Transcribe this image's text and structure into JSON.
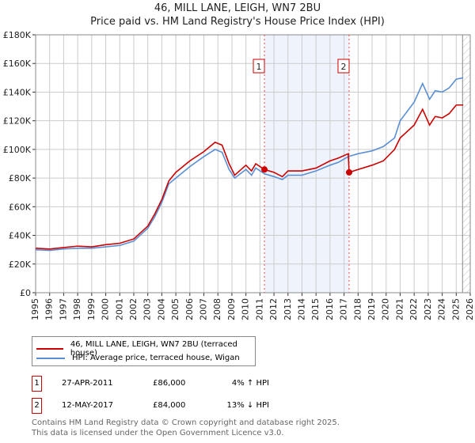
{
  "chart_data": {
    "type": "line",
    "title": "46, MILL LANE, LEIGH, WN7 2BU",
    "subtitle": "Price paid vs. HM Land Registry's House Price Index (HPI)",
    "xlim": [
      1995,
      2026
    ],
    "ylim": [
      0,
      180000
    ],
    "x_ticks": [
      "1995",
      "1996",
      "1997",
      "1998",
      "1999",
      "2000",
      "2001",
      "2002",
      "2003",
      "2004",
      "2005",
      "2006",
      "2007",
      "2008",
      "2009",
      "2010",
      "2011",
      "2012",
      "2013",
      "2014",
      "2015",
      "2016",
      "2017",
      "2018",
      "2019",
      "2020",
      "2021",
      "2022",
      "2023",
      "2024",
      "2025",
      "2026"
    ],
    "y_ticks": [
      {
        "v": 0,
        "label": "£0"
      },
      {
        "v": 20000,
        "label": "£20K"
      },
      {
        "v": 40000,
        "label": "£40K"
      },
      {
        "v": 60000,
        "label": "£60K"
      },
      {
        "v": 80000,
        "label": "£80K"
      },
      {
        "v": 100000,
        "label": "£100K"
      },
      {
        "v": 120000,
        "label": "£120K"
      },
      {
        "v": 140000,
        "label": "£140K"
      },
      {
        "v": 160000,
        "label": "£160K"
      },
      {
        "v": 180000,
        "label": "£180K"
      }
    ],
    "grid": true,
    "series": [
      {
        "name": "46, MILL LANE, LEIGH, WN7 2BU (terraced house)",
        "color": "#cc0000",
        "x": [
          1995,
          1996,
          1997,
          1998,
          1999,
          2000,
          2001,
          2002,
          2003,
          2003.5,
          2004,
          2004.5,
          2005,
          2006,
          2007,
          2007.8,
          2008.3,
          2008.8,
          2009.2,
          2010,
          2010.4,
          2010.7,
          2011.32,
          2012,
          2012.6,
          2013,
          2014,
          2015,
          2016,
          2016.6,
          2017.3,
          2017.36,
          2018,
          2019,
          2019.8,
          2020.6,
          2021,
          2022,
          2022.6,
          2023.1,
          2023.5,
          2024,
          2024.5,
          2025,
          2025.5
        ],
        "y": [
          31000,
          30500,
          31500,
          32500,
          32000,
          33500,
          34500,
          37500,
          46500,
          55000,
          65000,
          78000,
          84000,
          92000,
          98500,
          105000,
          103000,
          90000,
          82000,
          89000,
          85000,
          90000,
          86000,
          84000,
          81000,
          85000,
          85000,
          87000,
          92000,
          94000,
          97000,
          84000,
          86000,
          89000,
          92000,
          100000,
          108000,
          117000,
          128000,
          117000,
          123000,
          122000,
          125000,
          131000,
          131000
        ]
      },
      {
        "name": "HPI: Average price, terraced house, Wigan",
        "color": "#5b8fd4",
        "x": [
          1995,
          1996,
          1997,
          1998,
          1999,
          2000,
          2001,
          2002,
          2003,
          2003.5,
          2004,
          2004.5,
          2005,
          2006,
          2007,
          2007.8,
          2008.3,
          2008.8,
          2009.2,
          2010,
          2010.4,
          2010.7,
          2011.32,
          2012,
          2012.6,
          2013,
          2014,
          2015,
          2016,
          2016.6,
          2017.3,
          2018,
          2019,
          2019.8,
          2020.6,
          2021,
          2022,
          2022.6,
          2023.1,
          2023.5,
          2024,
          2024.5,
          2025,
          2025.5
        ],
        "y": [
          30000,
          29500,
          30500,
          31000,
          31000,
          32000,
          33000,
          36000,
          45000,
          53000,
          63000,
          76000,
          80000,
          88000,
          95000,
          100000,
          98000,
          86000,
          80000,
          86000,
          82000,
          87000,
          83000,
          81000,
          79000,
          82000,
          82000,
          85000,
          89000,
          91000,
          95000,
          97000,
          99000,
          102000,
          108000,
          120000,
          133000,
          146000,
          135000,
          141000,
          140000,
          143000,
          149000,
          150000
        ]
      }
    ],
    "sales": [
      {
        "label": "1",
        "x": 2011.32,
        "date": "27-APR-2011",
        "price": "£86,000",
        "price_value": 86000,
        "hpi": "4% ↑ HPI"
      },
      {
        "label": "2",
        "x": 2017.36,
        "date": "12-MAY-2017",
        "price": "£84,000",
        "price_value": 84000,
        "hpi": "13% ↓ HPI"
      }
    ],
    "shade_range": [
      2011.32,
      2017.36
    ],
    "hatch_from": 2025.45
  },
  "footer": {
    "line1": "Contains HM Land Registry data © Crown copyright and database right 2025.",
    "line2": "This data is licensed under the Open Government Licence v3.0."
  }
}
